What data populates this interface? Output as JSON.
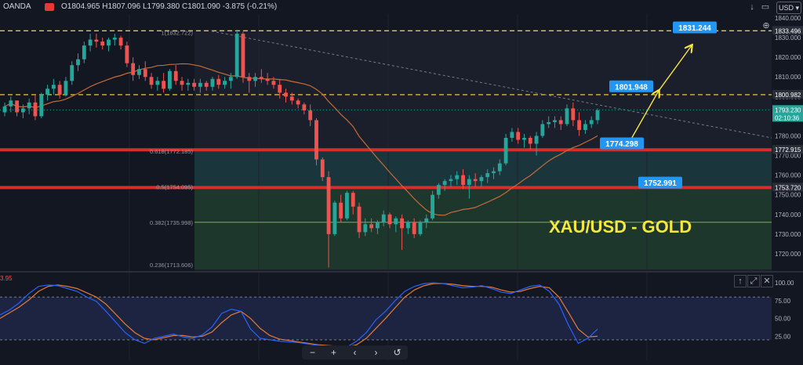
{
  "header": {
    "symbol": "OANDA",
    "ohlc_text": "O1804.965 H1807.096 L1799.380 C1801.090 -3.875 (-0.21%)",
    "currency": "USD",
    "currency_chevron": "chevron-down-icon"
  },
  "overlay_title": "XAU/USD - GOLD",
  "price_axis": {
    "ticks": [
      "1840.000",
      "1830.000",
      "1820.000",
      "1810.000",
      "1800.000",
      "1790.000",
      "1780.000",
      "1770.000",
      "1760.000",
      "1750.000",
      "1740.000",
      "1730.000",
      "1720.000"
    ],
    "badges": [
      {
        "text": "1833.496",
        "color": "#2a2e39"
      },
      {
        "text": "1800.982",
        "color": "#2a2e39"
      },
      {
        "text": "1793.230",
        "color": "#26a69a"
      },
      {
        "text": "02:10:36",
        "color": "#26a69a"
      },
      {
        "text": "1772.915",
        "color": "#2a2e39"
      },
      {
        "text": "1753.720",
        "color": "#2a2e39"
      }
    ]
  },
  "callouts": [
    "1831.244",
    "1801.948",
    "1774.298",
    "1752.991"
  ],
  "fib_labels": [
    "1(1832.722)",
    "0.618(1772.185)",
    "0.5(1754.095)",
    "0.382(1735.998)",
    "0.236(1713.606)"
  ],
  "oscillator": {
    "left_value": "3.95",
    "ticks": [
      "100.00",
      "75.00",
      "50.00",
      "25.00"
    ],
    "controls": [
      "arrow-up-icon",
      "maximize-icon",
      "close-icon"
    ]
  },
  "nav": {
    "items": [
      "minus-icon",
      "plus-icon",
      "chevron-left-icon",
      "chevron-right-icon",
      "reset-icon"
    ],
    "labels": [
      "−",
      "+",
      "‹",
      "›",
      "↺"
    ]
  },
  "top_controls": [
    "down-arrow-icon",
    "window-icon",
    "close-icon"
  ],
  "colors": {
    "bull": "#26a69a",
    "bear": "#ef5350",
    "accent": "#2196f3",
    "ma": "#c46c3a",
    "stoch_k": "#2962ff",
    "stoch_d": "#e07b39",
    "title": "#f5e642",
    "bg": "#131722"
  },
  "chart_data": {
    "type": "candlestick",
    "price_ylim": [
      1712,
      1842
    ],
    "candles": [
      [
        1792,
        1797,
        1790,
        1795
      ],
      [
        1795,
        1800,
        1792,
        1798
      ],
      [
        1798,
        1797,
        1790,
        1792
      ],
      [
        1792,
        1796,
        1789,
        1794
      ],
      [
        1794,
        1799,
        1791,
        1797
      ],
      [
        1797,
        1801,
        1788,
        1790
      ],
      [
        1790,
        1802,
        1789,
        1801
      ],
      [
        1801,
        1806,
        1798,
        1804
      ],
      [
        1804,
        1809,
        1801,
        1806
      ],
      [
        1806,
        1808,
        1799,
        1801
      ],
      [
        1801,
        1810,
        1800,
        1808
      ],
      [
        1808,
        1818,
        1806,
        1816
      ],
      [
        1816,
        1822,
        1813,
        1819
      ],
      [
        1819,
        1828,
        1817,
        1826
      ],
      [
        1826,
        1832,
        1823,
        1829
      ],
      [
        1829,
        1832,
        1825,
        1828
      ],
      [
        1828,
        1830,
        1824,
        1826
      ],
      [
        1826,
        1830,
        1823,
        1829
      ],
      [
        1829,
        1832,
        1826,
        1830
      ],
      [
        1830,
        1831,
        1824,
        1826
      ],
      [
        1826,
        1828,
        1815,
        1817
      ],
      [
        1817,
        1820,
        1808,
        1811
      ],
      [
        1811,
        1816,
        1809,
        1814
      ],
      [
        1814,
        1818,
        1808,
        1810
      ],
      [
        1810,
        1812,
        1804,
        1806
      ],
      [
        1806,
        1810,
        1803,
        1808
      ],
      [
        1808,
        1812,
        1802,
        1804
      ],
      [
        1804,
        1814,
        1803,
        1813
      ],
      [
        1813,
        1816,
        1806,
        1808
      ],
      [
        1808,
        1810,
        1803,
        1806
      ],
      [
        1806,
        1809,
        1803,
        1807
      ],
      [
        1807,
        1809,
        1803,
        1805
      ],
      [
        1805,
        1809,
        1802,
        1807
      ],
      [
        1807,
        1808,
        1803,
        1805
      ],
      [
        1805,
        1810,
        1803,
        1809
      ],
      [
        1809,
        1811,
        1804,
        1806
      ],
      [
        1806,
        1810,
        1804,
        1808
      ],
      [
        1808,
        1812,
        1804,
        1810
      ],
      [
        1810,
        1834,
        1809,
        1832
      ],
      [
        1832,
        1833,
        1807,
        1810
      ],
      [
        1810,
        1812,
        1802,
        1808
      ],
      [
        1808,
        1812,
        1805,
        1810
      ],
      [
        1810,
        1814,
        1807,
        1809
      ],
      [
        1809,
        1812,
        1806,
        1808
      ],
      [
        1808,
        1810,
        1804,
        1806
      ],
      [
        1806,
        1809,
        1799,
        1802
      ],
      [
        1802,
        1804,
        1797,
        1800
      ],
      [
        1800,
        1802,
        1796,
        1798
      ],
      [
        1798,
        1799,
        1794,
        1796
      ],
      [
        1796,
        1797,
        1791,
        1793
      ],
      [
        1793,
        1796,
        1785,
        1788
      ],
      [
        1788,
        1789,
        1765,
        1768
      ],
      [
        1768,
        1769,
        1757,
        1759
      ],
      [
        1759,
        1762,
        1713,
        1730
      ],
      [
        1730,
        1747,
        1729,
        1746
      ],
      [
        1746,
        1750,
        1736,
        1738
      ],
      [
        1738,
        1752,
        1737,
        1751
      ],
      [
        1751,
        1752,
        1740,
        1744
      ],
      [
        1744,
        1746,
        1728,
        1731
      ],
      [
        1731,
        1738,
        1729,
        1735
      ],
      [
        1735,
        1738,
        1731,
        1733
      ],
      [
        1733,
        1737,
        1730,
        1736
      ],
      [
        1736,
        1742,
        1734,
        1740
      ],
      [
        1740,
        1741,
        1733,
        1735
      ],
      [
        1735,
        1739,
        1731,
        1738
      ],
      [
        1738,
        1740,
        1722,
        1733
      ],
      [
        1733,
        1737,
        1730,
        1736
      ],
      [
        1736,
        1738,
        1728,
        1730
      ],
      [
        1730,
        1737,
        1729,
        1736
      ],
      [
        1736,
        1740,
        1733,
        1738
      ],
      [
        1738,
        1752,
        1737,
        1750
      ],
      [
        1750,
        1756,
        1748,
        1755
      ],
      [
        1755,
        1758,
        1752,
        1757
      ],
      [
        1757,
        1760,
        1754,
        1758
      ],
      [
        1758,
        1762,
        1755,
        1760
      ],
      [
        1760,
        1763,
        1753,
        1755
      ],
      [
        1755,
        1760,
        1748,
        1758
      ],
      [
        1758,
        1761,
        1754,
        1757
      ],
      [
        1757,
        1760,
        1754,
        1759
      ],
      [
        1759,
        1763,
        1756,
        1761
      ],
      [
        1761,
        1764,
        1758,
        1762
      ],
      [
        1762,
        1768,
        1760,
        1766
      ],
      [
        1766,
        1781,
        1765,
        1779
      ],
      [
        1779,
        1784,
        1777,
        1782
      ],
      [
        1782,
        1784,
        1776,
        1778
      ],
      [
        1778,
        1781,
        1774,
        1779
      ],
      [
        1779,
        1780,
        1773,
        1776
      ],
      [
        1776,
        1782,
        1770,
        1780
      ],
      [
        1780,
        1788,
        1779,
        1786
      ],
      [
        1786,
        1790,
        1784,
        1787
      ],
      [
        1787,
        1790,
        1784,
        1788
      ],
      [
        1788,
        1790,
        1783,
        1786
      ],
      [
        1786,
        1796,
        1785,
        1794
      ],
      [
        1794,
        1797,
        1785,
        1788
      ],
      [
        1788,
        1792,
        1780,
        1783
      ],
      [
        1783,
        1788,
        1781,
        1786
      ],
      [
        1786,
        1790,
        1784,
        1788
      ],
      [
        1788,
        1794,
        1786,
        1793
      ]
    ],
    "stoch_ylim": [
      0,
      110
    ],
    "stoch_k": [
      55,
      62,
      72,
      85,
      95,
      97,
      96,
      92,
      88,
      80,
      74,
      60,
      45,
      30,
      20,
      15,
      22,
      25,
      28,
      24,
      22,
      27,
      38,
      57,
      63,
      60,
      35,
      22,
      20,
      18,
      17,
      16,
      14,
      12,
      10,
      9,
      10,
      18,
      30,
      48,
      60,
      75,
      88,
      95,
      99,
      100,
      99,
      96,
      93,
      94,
      96,
      92,
      87,
      85,
      90,
      95,
      97,
      88,
      70,
      40,
      15,
      22,
      35
    ],
    "stoch_d": [
      50,
      58,
      66,
      76,
      88,
      95,
      97,
      95,
      92,
      86,
      80,
      70,
      56,
      42,
      30,
      22,
      20,
      23,
      26,
      26,
      24,
      25,
      31,
      44,
      55,
      60,
      50,
      36,
      26,
      21,
      19,
      17,
      15,
      13,
      12,
      11,
      10,
      13,
      22,
      36,
      50,
      65,
      80,
      90,
      96,
      99,
      99,
      98,
      96,
      95,
      95,
      94,
      90,
      87,
      88,
      92,
      95,
      93,
      80,
      58,
      35,
      24,
      25
    ]
  }
}
